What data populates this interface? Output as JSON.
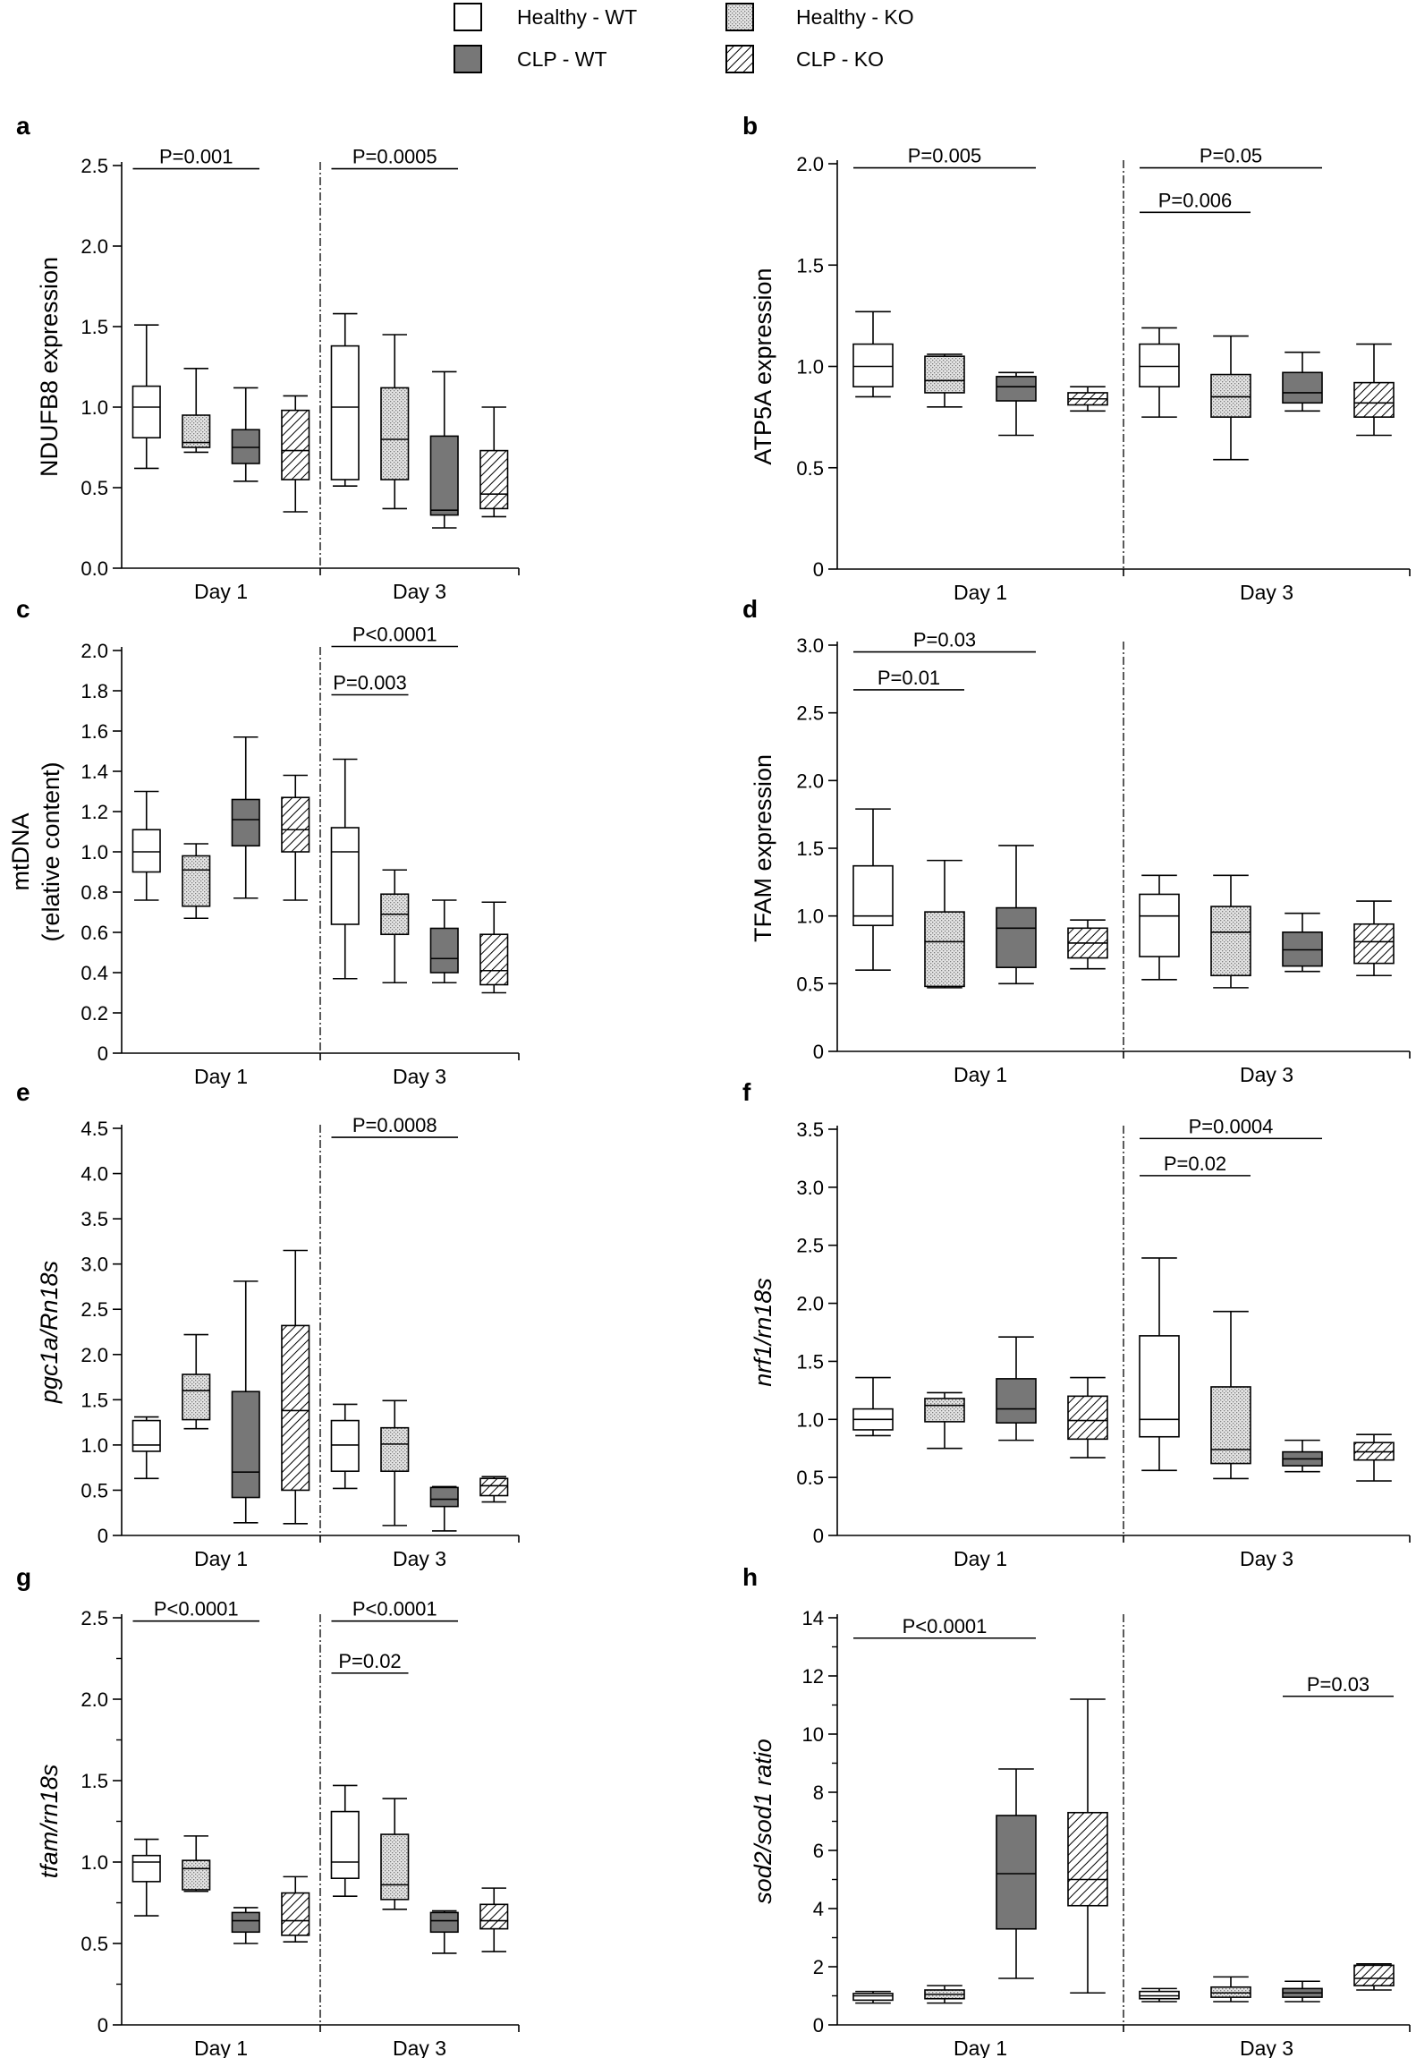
{
  "legend": {
    "items": [
      {
        "label": "Healthy - WT",
        "fill": "white"
      },
      {
        "label": "Healthy - KO",
        "fill": "dots"
      },
      {
        "label": "CLP - WT",
        "fill": "gray"
      },
      {
        "label": "CLP - KO",
        "fill": "hatch"
      }
    ]
  },
  "colors": {
    "dark_fill": "#777777",
    "light_fill": "#e4e4e4",
    "stroke": "#000000",
    "divider": "#000000"
  },
  "chart_data": [
    {
      "letter": "a",
      "type": "box",
      "title": "",
      "ylabel_lines": [
        "NDUFB8 expression"
      ],
      "ylabel_italic": false,
      "ylim": [
        0,
        2.5
      ],
      "yticks": [
        0,
        0.5,
        1.0,
        1.5,
        2.0,
        2.5
      ],
      "ytick_labels": [
        "0.0",
        "0.5",
        "1.0",
        "1.5",
        "2.0",
        "2.5"
      ],
      "minor_per_major": 0,
      "categories": [
        "Day 1",
        "Day 3"
      ],
      "series": [
        "Healthy - WT",
        "Healthy - KO",
        "CLP - WT",
        "CLP - KO"
      ],
      "boxes": [
        [
          [
            0.62,
            0.81,
            1.0,
            1.13,
            1.51
          ],
          [
            0.72,
            0.75,
            0.78,
            0.95,
            1.24
          ],
          [
            0.54,
            0.65,
            0.75,
            0.86,
            1.12
          ],
          [
            0.35,
            0.55,
            0.73,
            0.98,
            1.07
          ]
        ],
        [
          [
            0.51,
            0.55,
            1.0,
            1.38,
            1.58
          ],
          [
            0.37,
            0.55,
            0.8,
            1.12,
            1.45
          ],
          [
            0.25,
            0.33,
            0.36,
            0.82,
            1.22
          ],
          [
            0.32,
            0.37,
            0.46,
            0.73,
            1.0
          ]
        ]
      ],
      "significance": [
        {
          "label": "P=0.001",
          "group": 0,
          "from": 0,
          "to": 2,
          "y": 2.48
        },
        {
          "label": "P=0.0005",
          "group": 1,
          "from": 0,
          "to": 2,
          "y": 2.48
        }
      ]
    },
    {
      "letter": "b",
      "type": "box",
      "title": "",
      "ylabel_lines": [
        "ATP5A  expression"
      ],
      "ylabel_italic": false,
      "ylim": [
        0,
        2.0
      ],
      "yticks": [
        0,
        0.5,
        1.0,
        1.5,
        2.0
      ],
      "ytick_labels": [
        "0",
        "0.5",
        "1.0",
        "1.5",
        "2.0"
      ],
      "minor_per_major": 0,
      "categories": [
        "Day 1",
        "Day 3"
      ],
      "series": [
        "Healthy - WT",
        "Healthy - KO",
        "CLP - WT",
        "CLP - KO"
      ],
      "boxes": [
        [
          [
            0.85,
            0.9,
            1.0,
            1.11,
            1.27
          ],
          [
            0.8,
            0.87,
            0.93,
            1.05,
            1.06
          ],
          [
            0.66,
            0.83,
            0.9,
            0.95,
            0.97
          ],
          [
            0.78,
            0.81,
            0.84,
            0.87,
            0.9
          ]
        ],
        [
          [
            0.75,
            0.9,
            1.0,
            1.11,
            1.19
          ],
          [
            0.54,
            0.75,
            0.85,
            0.96,
            1.15
          ],
          [
            0.78,
            0.82,
            0.87,
            0.97,
            1.07
          ],
          [
            0.66,
            0.75,
            0.82,
            0.92,
            1.11
          ]
        ]
      ],
      "significance": [
        {
          "label": "P=0.005",
          "group": 0,
          "from": 0,
          "to": 2,
          "y": 1.98
        },
        {
          "label": "P=0.05",
          "group": 1,
          "from": 0,
          "to": 2,
          "y": 1.98
        },
        {
          "label": "P=0.006",
          "group": 1,
          "from": 0,
          "to": 1,
          "y": 1.76
        }
      ]
    },
    {
      "letter": "c",
      "type": "box",
      "title": "",
      "ylabel_lines": [
        "mtDNA",
        "(relative content)"
      ],
      "ylabel_italic": false,
      "ylim": [
        0,
        2.0
      ],
      "yticks": [
        0,
        0.2,
        0.4,
        0.6,
        0.8,
        1.0,
        1.2,
        1.4,
        1.6,
        1.8,
        2.0
      ],
      "ytick_labels": [
        "0",
        "0.2",
        "0.4",
        "0.6",
        "0.8",
        "1.0",
        "1.2",
        "1.4",
        "1.6",
        "1.8",
        "2.0"
      ],
      "minor_per_major": 0,
      "categories": [
        "Day 1",
        "Day 3"
      ],
      "series": [
        "Healthy - WT",
        "Healthy - KO",
        "CLP - WT",
        "CLP - KO"
      ],
      "boxes": [
        [
          [
            0.76,
            0.9,
            1.0,
            1.11,
            1.3
          ],
          [
            0.67,
            0.73,
            0.91,
            0.98,
            1.04
          ],
          [
            0.77,
            1.03,
            1.16,
            1.26,
            1.57
          ],
          [
            0.76,
            1.0,
            1.11,
            1.27,
            1.38
          ]
        ],
        [
          [
            0.37,
            0.64,
            1.0,
            1.12,
            1.46
          ],
          [
            0.35,
            0.59,
            0.69,
            0.79,
            0.91
          ],
          [
            0.35,
            0.4,
            0.47,
            0.62,
            0.76
          ],
          [
            0.3,
            0.34,
            0.41,
            0.59,
            0.75
          ]
        ]
      ],
      "significance": [
        {
          "label": "P<0.0001",
          "group": 1,
          "from": 0,
          "to": 2,
          "y": 2.02
        },
        {
          "label": "P=0.003",
          "group": 1,
          "from": 0,
          "to": 1,
          "y": 1.78
        }
      ]
    },
    {
      "letter": "d",
      "type": "box",
      "title": "",
      "ylabel_lines": [
        "TFAM expression"
      ],
      "ylabel_italic": false,
      "ylim": [
        0,
        3.0
      ],
      "yticks": [
        0,
        0.5,
        1.0,
        1.5,
        2.0,
        2.5,
        3.0
      ],
      "ytick_labels": [
        "0",
        "0.5",
        "1.0",
        "1.5",
        "2.0",
        "2.5",
        "3.0"
      ],
      "minor_per_major": 0,
      "categories": [
        "Day 1",
        "Day 3"
      ],
      "series": [
        "Healthy - WT",
        "Healthy - KO",
        "CLP - WT",
        "CLP - KO"
      ],
      "boxes": [
        [
          [
            0.6,
            0.93,
            1.0,
            1.37,
            1.79
          ],
          [
            0.47,
            0.48,
            0.81,
            1.03,
            1.41
          ],
          [
            0.5,
            0.62,
            0.91,
            1.06,
            1.52
          ],
          [
            0.61,
            0.69,
            0.8,
            0.91,
            0.97
          ]
        ],
        [
          [
            0.53,
            0.7,
            1.0,
            1.16,
            1.3
          ],
          [
            0.47,
            0.56,
            0.88,
            1.07,
            1.3
          ],
          [
            0.59,
            0.63,
            0.75,
            0.88,
            1.02
          ],
          [
            0.56,
            0.65,
            0.81,
            0.94,
            1.11
          ]
        ]
      ],
      "significance": [
        {
          "label": "P=0.03",
          "group": 0,
          "from": 0,
          "to": 2,
          "y": 2.95
        },
        {
          "label": "P=0.01",
          "group": 0,
          "from": 0,
          "to": 1,
          "y": 2.67
        }
      ]
    },
    {
      "letter": "e",
      "type": "box",
      "title": "",
      "ylabel_lines": [
        "pgc1a/Rn18s"
      ],
      "ylabel_italic": true,
      "ylim": [
        0,
        4.5
      ],
      "yticks": [
        0,
        0.5,
        1.0,
        1.5,
        2.0,
        2.5,
        3.0,
        3.5,
        4.0,
        4.5
      ],
      "ytick_labels": [
        "0",
        "0.5",
        "1.0",
        "1.5",
        "2.0",
        "2.5",
        "3.0",
        "3.5",
        "4.0",
        "4.5"
      ],
      "minor_per_major": 0,
      "categories": [
        "Day 1",
        "Day 3"
      ],
      "series": [
        "Healthy - WT",
        "Healthy - KO",
        "CLP - WT",
        "CLP - KO"
      ],
      "boxes": [
        [
          [
            0.63,
            0.93,
            1.0,
            1.27,
            1.31
          ],
          [
            1.18,
            1.28,
            1.6,
            1.78,
            2.22
          ],
          [
            0.14,
            0.42,
            0.7,
            1.59,
            2.81
          ],
          [
            0.13,
            0.5,
            1.38,
            2.32,
            3.15
          ]
        ],
        [
          [
            0.52,
            0.71,
            1.0,
            1.27,
            1.45
          ],
          [
            0.11,
            0.71,
            1.01,
            1.19,
            1.49
          ],
          [
            0.05,
            0.32,
            0.4,
            0.53,
            0.54
          ],
          [
            0.37,
            0.44,
            0.55,
            0.63,
            0.65
          ]
        ]
      ],
      "significance": [
        {
          "label": "P=0.0008",
          "group": 1,
          "from": 0,
          "to": 2,
          "y": 4.4
        }
      ]
    },
    {
      "letter": "f",
      "type": "box",
      "title": "",
      "ylabel_lines": [
        "nrf1/rn18s"
      ],
      "ylabel_italic": true,
      "ylim": [
        0,
        3.5
      ],
      "yticks": [
        0,
        0.5,
        1.0,
        1.5,
        2.0,
        2.5,
        3.0,
        3.5
      ],
      "ytick_labels": [
        "0",
        "0.5",
        "1.0",
        "1.5",
        "2.0",
        "2.5",
        "3.0",
        "3.5"
      ],
      "minor_per_major": 0,
      "categories": [
        "Day 1",
        "Day 3"
      ],
      "series": [
        "Healthy - WT",
        "Healthy - KO",
        "CLP - WT",
        "CLP - KO"
      ],
      "boxes": [
        [
          [
            0.86,
            0.91,
            1.0,
            1.09,
            1.36
          ],
          [
            0.75,
            0.98,
            1.12,
            1.18,
            1.23
          ],
          [
            0.82,
            0.97,
            1.09,
            1.35,
            1.71
          ],
          [
            0.67,
            0.83,
            0.99,
            1.2,
            1.36
          ]
        ],
        [
          [
            0.56,
            0.85,
            1.0,
            1.72,
            2.39
          ],
          [
            0.49,
            0.62,
            0.74,
            1.28,
            1.93
          ],
          [
            0.55,
            0.6,
            0.66,
            0.72,
            0.82
          ],
          [
            0.47,
            0.65,
            0.72,
            0.8,
            0.87
          ]
        ]
      ],
      "significance": [
        {
          "label": "P=0.0004",
          "group": 1,
          "from": 0,
          "to": 2,
          "y": 3.42
        },
        {
          "label": "P=0.02",
          "group": 1,
          "from": 0,
          "to": 1,
          "y": 3.1
        }
      ]
    },
    {
      "letter": "g",
      "type": "box",
      "title": "",
      "ylabel_lines": [
        "tfam/rn18s"
      ],
      "ylabel_italic": true,
      "ylim": [
        0,
        2.5
      ],
      "yticks": [
        0,
        0.5,
        1.0,
        1.5,
        2.0,
        2.5
      ],
      "ytick_labels": [
        "0",
        "0.5",
        "1.0",
        "1.5",
        "2.0",
        "2.5"
      ],
      "minor_per_major": 1,
      "categories": [
        "Day 1",
        "Day 3"
      ],
      "series": [
        "Healthy - WT",
        "Healthy - KO",
        "CLP - WT",
        "CLP - KO"
      ],
      "boxes": [
        [
          [
            0.67,
            0.88,
            1.0,
            1.04,
            1.14
          ],
          [
            0.82,
            0.83,
            0.96,
            1.01,
            1.16
          ],
          [
            0.5,
            0.57,
            0.64,
            0.69,
            0.72
          ],
          [
            0.51,
            0.55,
            0.64,
            0.81,
            0.91
          ]
        ],
        [
          [
            0.79,
            0.9,
            1.0,
            1.31,
            1.47
          ],
          [
            0.71,
            0.77,
            0.86,
            1.17,
            1.39
          ],
          [
            0.44,
            0.57,
            0.64,
            0.69,
            0.7
          ],
          [
            0.45,
            0.59,
            0.64,
            0.74,
            0.84
          ]
        ]
      ],
      "significance": [
        {
          "label": "P<0.0001",
          "group": 0,
          "from": 0,
          "to": 2,
          "y": 2.48
        },
        {
          "label": "P<0.0001",
          "group": 1,
          "from": 0,
          "to": 2,
          "y": 2.48
        },
        {
          "label": "P=0.02",
          "group": 1,
          "from": 0,
          "to": 1,
          "y": 2.16
        }
      ]
    },
    {
      "letter": "h",
      "type": "box",
      "title": "",
      "ylabel_lines": [
        "sod2/sod1 ratio"
      ],
      "ylabel_italic": true,
      "ylim": [
        0,
        14
      ],
      "yticks": [
        0,
        2,
        4,
        6,
        8,
        10,
        12,
        14
      ],
      "ytick_labels": [
        "0",
        "2",
        "4",
        "6",
        "8",
        "10",
        "12",
        "14"
      ],
      "minor_per_major": 1,
      "categories": [
        "Day 1",
        "Day 3"
      ],
      "series": [
        "Healthy - WT",
        "Healthy - KO",
        "CLP - WT",
        "CLP - KO"
      ],
      "boxes": [
        [
          [
            0.75,
            0.85,
            1.0,
            1.08,
            1.15
          ],
          [
            0.75,
            0.9,
            1.05,
            1.2,
            1.35
          ],
          [
            1.6,
            3.3,
            5.2,
            7.2,
            8.8
          ],
          [
            1.1,
            4.1,
            5.0,
            7.3,
            11.2
          ]
        ],
        [
          [
            0.8,
            0.9,
            1.0,
            1.15,
            1.25
          ],
          [
            0.8,
            0.95,
            1.1,
            1.3,
            1.65
          ],
          [
            0.8,
            0.95,
            1.1,
            1.25,
            1.5
          ],
          [
            1.2,
            1.35,
            1.6,
            2.05,
            2.1
          ]
        ]
      ],
      "significance": [
        {
          "label": "P<0.0001",
          "group": 0,
          "from": 0,
          "to": 2,
          "y": 13.3
        },
        {
          "label": "P=0.03",
          "group": 1,
          "from": 2,
          "to": 3,
          "y": 11.3
        }
      ]
    }
  ]
}
